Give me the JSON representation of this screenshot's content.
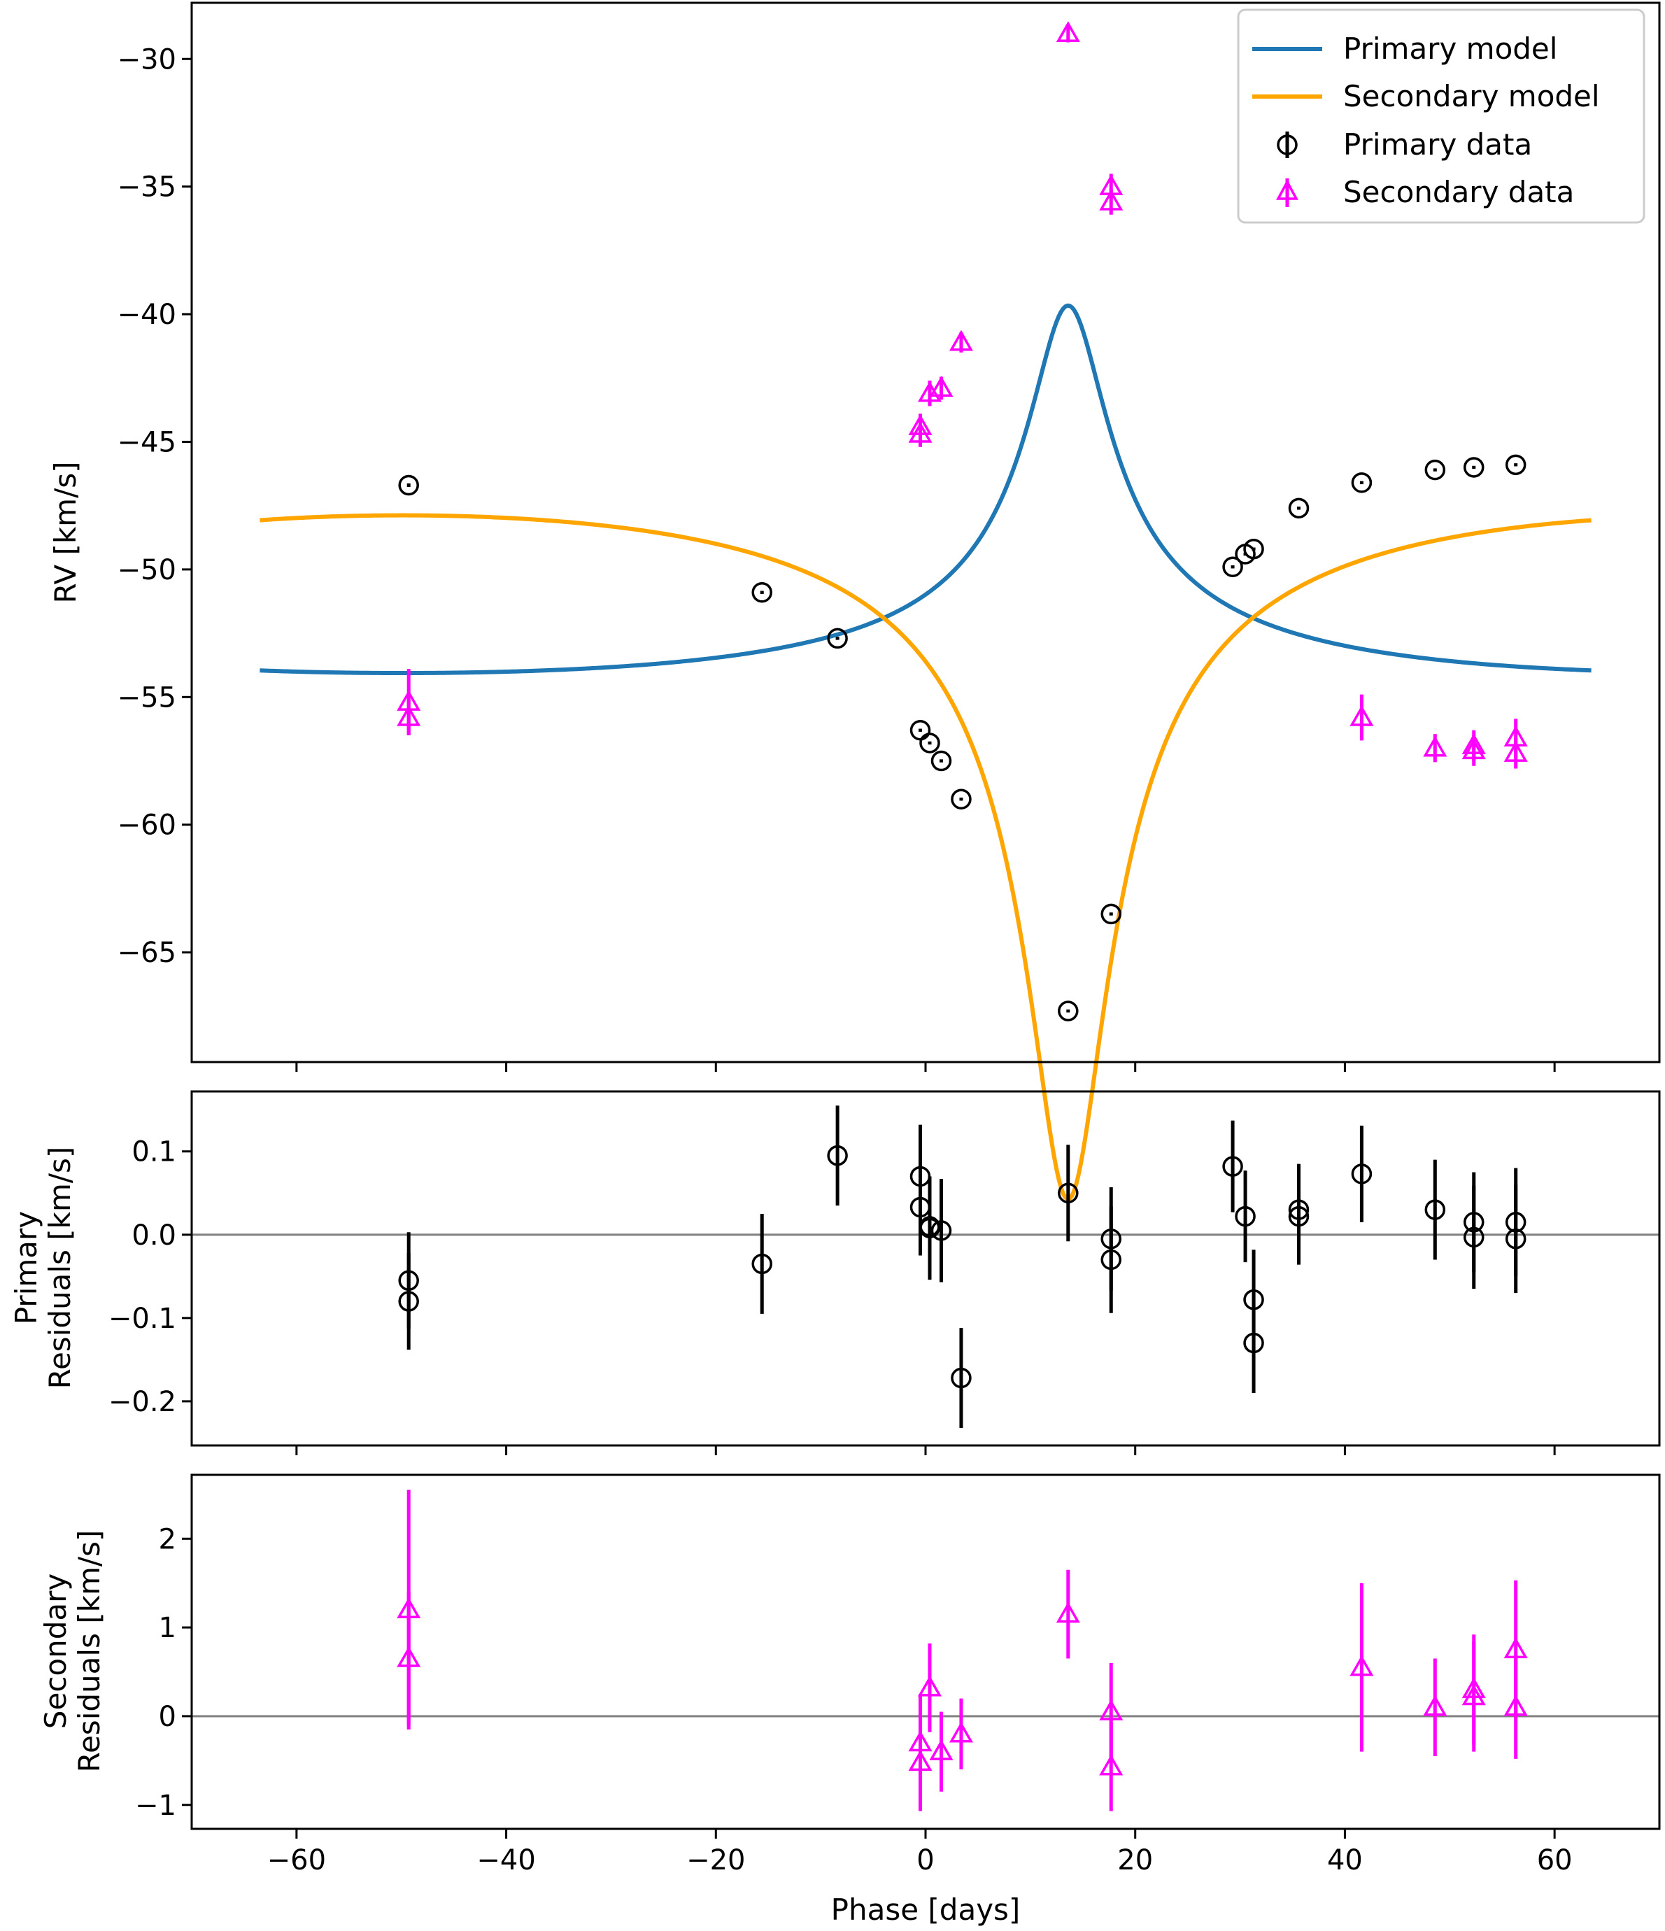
{
  "figure": {
    "xlabel": "Phase [days]"
  },
  "legend": {
    "items": [
      {
        "label": "Primary model",
        "kind": "line",
        "color": "#1f77b4"
      },
      {
        "label": "Secondary model",
        "kind": "line",
        "color": "#ffa500"
      },
      {
        "label": "Primary data",
        "kind": "circle",
        "color": "#000000"
      },
      {
        "label": "Secondary data",
        "kind": "triangle",
        "color": "#ff00ff"
      }
    ]
  },
  "chart_data": [
    {
      "id": "rv",
      "type": "line",
      "title": "",
      "xlabel": "",
      "ylabel": "RV [km/s]",
      "xlim": [
        -70,
        70
      ],
      "ylim": [
        -69.3,
        -27.8
      ],
      "xticks": [
        -60,
        -40,
        -20,
        0,
        20,
        40,
        60
      ],
      "yticks": [
        -65,
        -60,
        -55,
        -50,
        -45,
        -40,
        -35,
        -30
      ],
      "ytick_labels": [
        "−65",
        "−60",
        "−55",
        "−50",
        "−45",
        "−40",
        "−35",
        "−30"
      ],
      "xtick_labels_shown": false,
      "grid": false,
      "legend_position": "top-right",
      "model": {
        "period_days": 127,
        "periastron_phase": 13.6,
        "eccentricity": 0.7,
        "omega_deg": 180,
        "gamma": -51.9,
        "K_primary": 7.2,
        "K_secondary": 13.4,
        "x_range": [
          -63.5,
          63.5
        ]
      },
      "series": [
        {
          "name": "Primary model",
          "kind": "line",
          "color": "#1f77b4"
        },
        {
          "name": "Secondary model",
          "kind": "line",
          "color": "#ffa500"
        },
        {
          "name": "Primary data",
          "kind": "points",
          "marker": "circle",
          "color": "#000000",
          "x": [
            -49.3,
            -15.6,
            -8.4,
            -0.5,
            0.4,
            1.5,
            3.4,
            13.6,
            17.7,
            29.3,
            30.5,
            31.3,
            35.6,
            41.6,
            48.6,
            52.3,
            56.3
          ],
          "y": [
            -46.7,
            -50.9,
            -52.7,
            -56.3,
            -56.8,
            -57.5,
            -59.0,
            -67.3,
            -63.5,
            -49.9,
            -49.4,
            -49.2,
            -47.6,
            -46.6,
            -46.1,
            -46.0,
            -45.9
          ],
          "err": [
            0.07,
            0.06,
            0.06,
            0.06,
            0.06,
            0.06,
            0.06,
            0.06,
            0.06,
            0.06,
            0.06,
            0.06,
            0.06,
            0.06,
            0.06,
            0.06,
            0.06
          ]
        },
        {
          "name": "Secondary data",
          "kind": "points",
          "marker": "triangle",
          "color": "#ff00ff",
          "x": [
            -49.3,
            -49.3,
            -0.5,
            -0.5,
            0.4,
            1.5,
            3.4,
            13.6,
            17.7,
            17.7,
            41.6,
            48.6,
            52.3,
            52.3,
            56.3,
            56.3
          ],
          "y": [
            -55.2,
            -55.8,
            -44.4,
            -44.7,
            -43.1,
            -42.9,
            -41.1,
            -29.0,
            -35.0,
            -35.6,
            -55.8,
            -57.0,
            -56.9,
            -57.1,
            -56.6,
            -57.2
          ],
          "err": [
            1.3,
            0.7,
            0.5,
            0.5,
            0.5,
            0.45,
            0.4,
            0.35,
            0.5,
            0.5,
            0.9,
            0.55,
            0.6,
            0.6,
            0.75,
            0.6
          ]
        }
      ]
    },
    {
      "id": "primary_residuals",
      "type": "scatter",
      "title": "",
      "xlabel": "",
      "ylabel": [
        "Primary",
        "Residuals [km/s]"
      ],
      "xlim": [
        -70,
        70
      ],
      "ylim": [
        -0.253,
        0.172
      ],
      "xticks": [
        -60,
        -40,
        -20,
        0,
        20,
        40,
        60
      ],
      "yticks": [
        -0.2,
        -0.1,
        0.0,
        0.1
      ],
      "ytick_labels": [
        "−0.2",
        "−0.1",
        "0.0",
        "0.1"
      ],
      "xtick_labels_shown": false,
      "zero_line_color": "#808080",
      "grid": false,
      "series": [
        {
          "name": "Primary residuals",
          "marker": "circle",
          "color": "#000000",
          "x": [
            -49.3,
            -49.3,
            -15.6,
            -8.4,
            -0.5,
            -0.5,
            0.4,
            0.4,
            1.5,
            3.4,
            13.6,
            17.7,
            17.7,
            29.3,
            30.5,
            31.3,
            31.3,
            35.6,
            35.6,
            41.6,
            48.6,
            52.3,
            52.3,
            56.3,
            56.3
          ],
          "y": [
            -0.055,
            -0.08,
            -0.035,
            0.095,
            0.07,
            0.033,
            0.01,
            0.008,
            0.005,
            -0.172,
            0.05,
            -0.005,
            -0.03,
            0.082,
            0.022,
            -0.078,
            -0.13,
            0.03,
            0.022,
            0.073,
            0.03,
            0.015,
            -0.003,
            0.015,
            -0.005
          ],
          "err": [
            0.058,
            0.058,
            0.06,
            0.06,
            0.062,
            0.058,
            0.06,
            0.062,
            0.062,
            0.06,
            0.058,
            0.062,
            0.064,
            0.055,
            0.055,
            0.06,
            0.06,
            0.055,
            0.058,
            0.058,
            0.06,
            0.06,
            0.062,
            0.065,
            0.065
          ]
        }
      ]
    },
    {
      "id": "secondary_residuals",
      "type": "scatter",
      "title": "",
      "xlabel": "Phase [days]",
      "ylabel": [
        "Secondary",
        "Residuals [km/s]"
      ],
      "xlim": [
        -70,
        70
      ],
      "ylim": [
        -1.27,
        2.72
      ],
      "xticks": [
        -60,
        -40,
        -20,
        0,
        20,
        40,
        60
      ],
      "xtick_labels": [
        "−60",
        "−40",
        "−20",
        "0",
        "20",
        "40",
        "60"
      ],
      "yticks": [
        -1,
        0,
        1,
        2
      ],
      "ytick_labels": [
        "−1",
        "0",
        "1",
        "2"
      ],
      "xtick_labels_shown": true,
      "zero_line_color": "#808080",
      "grid": false,
      "series": [
        {
          "name": "Secondary residuals",
          "marker": "triangle",
          "color": "#ff00ff",
          "x": [
            -49.3,
            -49.3,
            -0.5,
            -0.5,
            0.4,
            1.5,
            3.4,
            13.6,
            17.7,
            17.7,
            41.6,
            48.6,
            52.3,
            52.3,
            56.3,
            56.3
          ],
          "y": [
            1.2,
            0.65,
            -0.3,
            -0.52,
            0.32,
            -0.4,
            -0.2,
            1.15,
            0.05,
            -0.57,
            0.55,
            0.1,
            0.3,
            0.22,
            0.75,
            0.1
          ],
          "err": [
            1.35,
            0.75,
            0.55,
            0.55,
            0.5,
            0.45,
            0.4,
            0.5,
            0.55,
            0.5,
            0.95,
            0.55,
            0.62,
            0.62,
            0.78,
            0.58
          ]
        }
      ]
    }
  ]
}
